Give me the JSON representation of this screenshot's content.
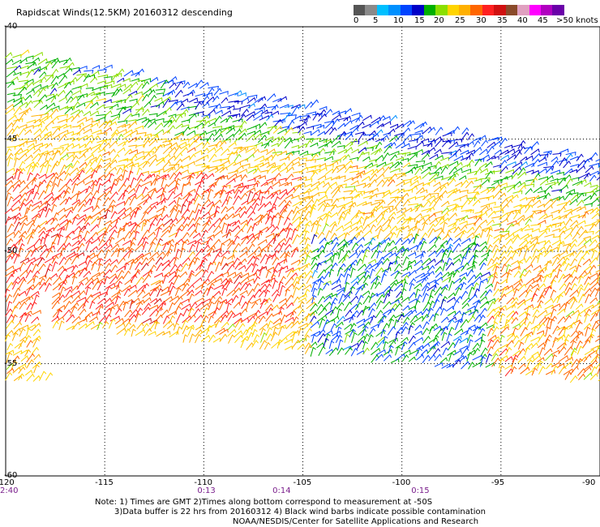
{
  "title": "Rapidscat Winds(12.5KM) 20160312 descending",
  "legend": {
    "colors": [
      "#555555",
      "#8a8a8a",
      "#00bfff",
      "#0090ff",
      "#0044ff",
      "#0000c8",
      "#00b000",
      "#8adf00",
      "#ffd400",
      "#ffb000",
      "#ff6600",
      "#ff2020",
      "#d01010",
      "#8a4a2a",
      "#e0a0c0",
      "#ff00ff",
      "#b000c0",
      "#6a00a8"
    ],
    "labels": [
      "0",
      "5",
      "10",
      "15",
      "20",
      "25",
      "30",
      "35",
      "40",
      "45",
      ">50 knots"
    ]
  },
  "axes": {
    "lon_ticks": [
      "-120",
      "-115",
      "-110",
      "-105",
      "-100",
      "-95",
      "-90"
    ],
    "lat_ticks": [
      "-40",
      "-45",
      "-50",
      "-55",
      "-60"
    ],
    "lon_range": [
      -120,
      -90
    ],
    "lat_range": [
      -40,
      -60
    ]
  },
  "time_labels": [
    {
      "text": "2:40",
      "lon": -120
    },
    {
      "text": "0:13",
      "lon": -110
    },
    {
      "text": "0:14",
      "lon": -106.2
    },
    {
      "text": "0:15",
      "lon": -99.2
    }
  ],
  "notes": [
    "Note: 1) Times are GMT 2)Times along bottom correspond to measurement at -50S",
    "3)Data buffer is 22 hrs from 20160312 4) Black wind barbs indicate possible contamination",
    "NOAA/NESDIS/Center for Satellite Applications and Research"
  ]
}
